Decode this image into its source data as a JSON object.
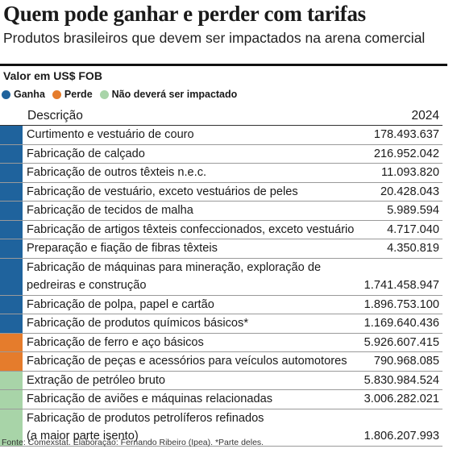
{
  "header": {
    "title": "Quem pode ganhar e perder com tarifas",
    "subtitle": "Produtos brasileiros que devem ser impactados na arena comercial",
    "unit": "Valor em US$ FOB"
  },
  "legend": [
    {
      "label": "Ganha",
      "color": "#1f639d"
    },
    {
      "label": "Perde",
      "color": "#e57c2c"
    },
    {
      "label": "Não deverá ser impactado",
      "color": "#a8d4a8"
    }
  ],
  "table": {
    "col_desc": "Descrição",
    "col_year": "2024",
    "rows": [
      {
        "desc": "Curtimento e vestuário de couro",
        "value": "178.493.637",
        "cat": 0
      },
      {
        "desc": "Fabricação de calçado",
        "value": "216.952.042",
        "cat": 0
      },
      {
        "desc": "Fabricação de outros têxteis n.e.c.",
        "value": "11.093.820",
        "cat": 0
      },
      {
        "desc": "Fabricação de vestuário, exceto vestuários de peles",
        "value": "20.428.043",
        "cat": 0
      },
      {
        "desc": "Fabricação de tecidos de malha",
        "value": "5.989.594",
        "cat": 0
      },
      {
        "desc": "Fabricação de artigos têxteis confeccionados, exceto vestuário",
        "value": "4.717.040",
        "cat": 0
      },
      {
        "desc": "Preparação e fiação de fibras têxteis",
        "value": "4.350.819",
        "cat": 0
      },
      {
        "desc": "Fabricação de máquinas para mineração, exploração de\npedreiras e construção",
        "value": "1.741.458.947",
        "cat": 0
      },
      {
        "desc": "Fabricação de polpa, papel e cartão",
        "value": "1.896.753.100",
        "cat": 0
      },
      {
        "desc": "Fabricação de produtos químicos básicos*",
        "value": "1.169.640.436",
        "cat": 0
      },
      {
        "desc": "Fabricação de ferro e aço básicos",
        "value": "5.926.607.415",
        "cat": 1
      },
      {
        "desc": "Fabricação de peças e acessórios para veículos automotores",
        "value": "790.968.085",
        "cat": 1
      },
      {
        "desc": "Extração de petróleo bruto",
        "value": "5.830.984.524",
        "cat": 2
      },
      {
        "desc": "Fabricação de aviões e máquinas relacionadas",
        "value": "3.006.282.021",
        "cat": 2
      },
      {
        "desc": "Fabricação de produtos petrolíferos refinados\n(a maior parte isento)",
        "value": "1.806.207.993",
        "cat": 2
      }
    ]
  },
  "source": "Fonte: Comexstat. Elaboração: Fernando Ribeiro (Ipea). *Parte deles."
}
